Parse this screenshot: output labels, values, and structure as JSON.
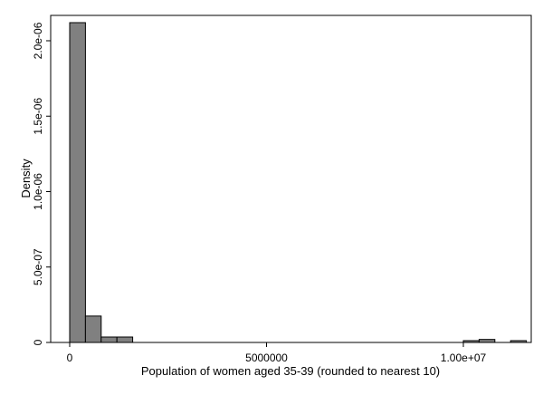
{
  "chart_data": {
    "type": "bar",
    "title": "",
    "xlabel": "Population of women aged 35-39 (rounded to nearest 10)",
    "ylabel": "Density",
    "xlim": [
      0,
      11500000
    ],
    "ylim": [
      0,
      2.12e-06
    ],
    "x_ticks": [
      {
        "value": 0,
        "label": "0"
      },
      {
        "value": 5000000,
        "label": "5000000"
      },
      {
        "value": 10000000,
        "label": "1.00e+07"
      }
    ],
    "y_ticks": [
      {
        "value": 0,
        "label": "0"
      },
      {
        "value": 5e-07,
        "label": "5.0e-07"
      },
      {
        "value": 1e-06,
        "label": "1.0e-06"
      },
      {
        "value": 1.5e-06,
        "label": "1.5e-06"
      },
      {
        "value": 2e-06,
        "label": "2.0e-06"
      }
    ],
    "bin_width": 400000,
    "bins": [
      {
        "start": 0,
        "density": 2.12e-06
      },
      {
        "start": 400000,
        "density": 1.75e-07
      },
      {
        "start": 800000,
        "density": 3.6e-08
      },
      {
        "start": 1200000,
        "density": 3.6e-08
      },
      {
        "start": 10000000,
        "density": 1.2e-08
      },
      {
        "start": 10400000,
        "density": 2e-08
      },
      {
        "start": 11200000,
        "density": 1.2e-08
      }
    ],
    "bar_color": "#808080",
    "bar_edge_color": "#000000",
    "grid": false
  }
}
